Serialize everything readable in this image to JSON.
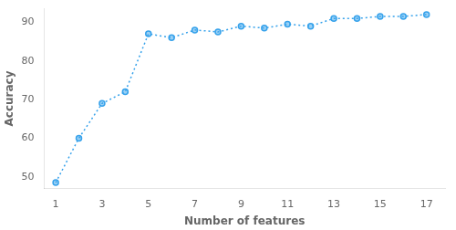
{
  "chart_data": {
    "type": "line",
    "x": [
      1,
      2,
      3,
      4,
      5,
      6,
      7,
      8,
      9,
      10,
      11,
      12,
      13,
      14,
      15,
      16,
      17
    ],
    "values": [
      48.5,
      60.0,
      69.0,
      72.0,
      87.0,
      86.0,
      88.0,
      87.5,
      89.0,
      88.5,
      89.5,
      89.0,
      91.0,
      91.0,
      91.5,
      91.5,
      92.0
    ],
    "xlabel": "Number of features",
    "ylabel": "Accuracy",
    "xlim": [
      0.5,
      17.8
    ],
    "ylim": [
      47,
      93.5
    ],
    "xticks": [
      1,
      3,
      5,
      7,
      9,
      11,
      13,
      15,
      17
    ],
    "yticks": [
      50,
      60,
      70,
      80,
      90
    ],
    "line_style": "dotted",
    "marker": "circle",
    "grid": false
  }
}
